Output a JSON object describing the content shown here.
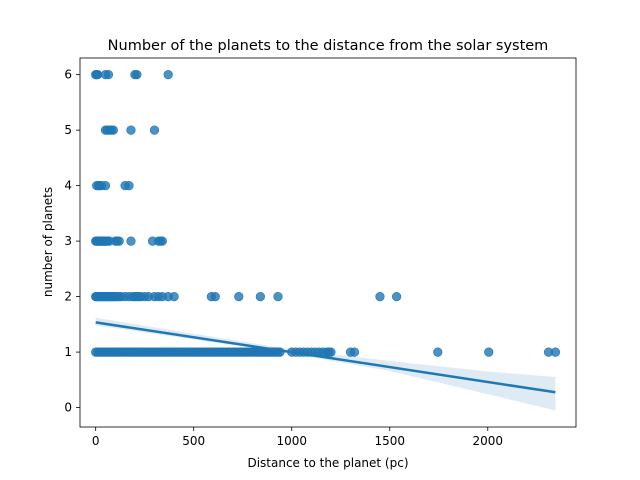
{
  "chart_data": {
    "type": "scatter",
    "title": "Number of the planets to the distance from the solar system",
    "xlabel": "Distance to the planet (pc)",
    "ylabel": "number of planets",
    "xlim": [
      -80,
      2450
    ],
    "ylim": [
      -0.35,
      6.3
    ],
    "xticks": [
      0,
      500,
      1000,
      1500,
      2000
    ],
    "yticks": [
      0,
      1,
      2,
      3,
      4,
      5,
      6
    ],
    "grid": false,
    "point_color": "#1f77b4",
    "band_color": "#1f77b4",
    "series": [
      {
        "type": "scatter",
        "points": [
          [
            0,
            6
          ],
          [
            5,
            6
          ],
          [
            10,
            6
          ],
          [
            50,
            6
          ],
          [
            65,
            6
          ],
          [
            200,
            6
          ],
          [
            210,
            6
          ],
          [
            370,
            6
          ],
          [
            50,
            5
          ],
          [
            60,
            5
          ],
          [
            70,
            5
          ],
          [
            80,
            5
          ],
          [
            90,
            5
          ],
          [
            180,
            5
          ],
          [
            300,
            5
          ],
          [
            5,
            4
          ],
          [
            15,
            4
          ],
          [
            20,
            4
          ],
          [
            30,
            4
          ],
          [
            50,
            4
          ],
          [
            150,
            4
          ],
          [
            170,
            4
          ],
          [
            0,
            3
          ],
          [
            5,
            3
          ],
          [
            10,
            3
          ],
          [
            15,
            3
          ],
          [
            20,
            3
          ],
          [
            25,
            3
          ],
          [
            30,
            3
          ],
          [
            35,
            3
          ],
          [
            40,
            3
          ],
          [
            45,
            3
          ],
          [
            50,
            3
          ],
          [
            55,
            3
          ],
          [
            60,
            3
          ],
          [
            70,
            3
          ],
          [
            100,
            3
          ],
          [
            110,
            3
          ],
          [
            120,
            3
          ],
          [
            180,
            3
          ],
          [
            290,
            3
          ],
          [
            320,
            3
          ],
          [
            330,
            3
          ],
          [
            340,
            3
          ],
          [
            0,
            2
          ],
          [
            5,
            2
          ],
          [
            10,
            2
          ],
          [
            15,
            2
          ],
          [
            20,
            2
          ],
          [
            25,
            2
          ],
          [
            30,
            2
          ],
          [
            35,
            2
          ],
          [
            40,
            2
          ],
          [
            45,
            2
          ],
          [
            50,
            2
          ],
          [
            55,
            2
          ],
          [
            60,
            2
          ],
          [
            65,
            2
          ],
          [
            70,
            2
          ],
          [
            75,
            2
          ],
          [
            80,
            2
          ],
          [
            85,
            2
          ],
          [
            90,
            2
          ],
          [
            95,
            2
          ],
          [
            100,
            2
          ],
          [
            110,
            2
          ],
          [
            120,
            2
          ],
          [
            130,
            2
          ],
          [
            150,
            2
          ],
          [
            170,
            2
          ],
          [
            190,
            2
          ],
          [
            200,
            2
          ],
          [
            210,
            2
          ],
          [
            220,
            2
          ],
          [
            230,
            2
          ],
          [
            250,
            2
          ],
          [
            270,
            2
          ],
          [
            300,
            2
          ],
          [
            320,
            2
          ],
          [
            340,
            2
          ],
          [
            370,
            2
          ],
          [
            400,
            2
          ],
          [
            590,
            2
          ],
          [
            610,
            2
          ],
          [
            730,
            2
          ],
          [
            840,
            2
          ],
          [
            930,
            2
          ],
          [
            1450,
            2
          ],
          [
            1535,
            2
          ],
          [
            0,
            1
          ],
          [
            10,
            1
          ],
          [
            20,
            1
          ],
          [
            30,
            1
          ],
          [
            40,
            1
          ],
          [
            50,
            1
          ],
          [
            60,
            1
          ],
          [
            70,
            1
          ],
          [
            80,
            1
          ],
          [
            90,
            1
          ],
          [
            100,
            1
          ],
          [
            110,
            1
          ],
          [
            120,
            1
          ],
          [
            130,
            1
          ],
          [
            140,
            1
          ],
          [
            150,
            1
          ],
          [
            160,
            1
          ],
          [
            170,
            1
          ],
          [
            180,
            1
          ],
          [
            190,
            1
          ],
          [
            200,
            1
          ],
          [
            210,
            1
          ],
          [
            220,
            1
          ],
          [
            230,
            1
          ],
          [
            240,
            1
          ],
          [
            250,
            1
          ],
          [
            260,
            1
          ],
          [
            270,
            1
          ],
          [
            280,
            1
          ],
          [
            290,
            1
          ],
          [
            300,
            1
          ],
          [
            310,
            1
          ],
          [
            320,
            1
          ],
          [
            330,
            1
          ],
          [
            340,
            1
          ],
          [
            350,
            1
          ],
          [
            360,
            1
          ],
          [
            370,
            1
          ],
          [
            380,
            1
          ],
          [
            390,
            1
          ],
          [
            400,
            1
          ],
          [
            410,
            1
          ],
          [
            420,
            1
          ],
          [
            430,
            1
          ],
          [
            440,
            1
          ],
          [
            450,
            1
          ],
          [
            460,
            1
          ],
          [
            470,
            1
          ],
          [
            480,
            1
          ],
          [
            490,
            1
          ],
          [
            500,
            1
          ],
          [
            510,
            1
          ],
          [
            520,
            1
          ],
          [
            530,
            1
          ],
          [
            540,
            1
          ],
          [
            550,
            1
          ],
          [
            560,
            1
          ],
          [
            570,
            1
          ],
          [
            580,
            1
          ],
          [
            590,
            1
          ],
          [
            600,
            1
          ],
          [
            610,
            1
          ],
          [
            620,
            1
          ],
          [
            630,
            1
          ],
          [
            640,
            1
          ],
          [
            650,
            1
          ],
          [
            660,
            1
          ],
          [
            670,
            1
          ],
          [
            680,
            1
          ],
          [
            690,
            1
          ],
          [
            700,
            1
          ],
          [
            710,
            1
          ],
          [
            720,
            1
          ],
          [
            730,
            1
          ],
          [
            740,
            1
          ],
          [
            750,
            1
          ],
          [
            760,
            1
          ],
          [
            770,
            1
          ],
          [
            780,
            1
          ],
          [
            790,
            1
          ],
          [
            800,
            1
          ],
          [
            810,
            1
          ],
          [
            820,
            1
          ],
          [
            830,
            1
          ],
          [
            840,
            1
          ],
          [
            850,
            1
          ],
          [
            860,
            1
          ],
          [
            870,
            1
          ],
          [
            880,
            1
          ],
          [
            890,
            1
          ],
          [
            900,
            1
          ],
          [
            910,
            1
          ],
          [
            920,
            1
          ],
          [
            930,
            1
          ],
          [
            940,
            1
          ],
          [
            1000,
            1
          ],
          [
            1020,
            1
          ],
          [
            1040,
            1
          ],
          [
            1060,
            1
          ],
          [
            1080,
            1
          ],
          [
            1100,
            1
          ],
          [
            1120,
            1
          ],
          [
            1140,
            1
          ],
          [
            1160,
            1
          ],
          [
            1180,
            1
          ],
          [
            1190,
            1
          ],
          [
            1200,
            1
          ],
          [
            1300,
            1
          ],
          [
            1320,
            1
          ],
          [
            1745,
            1
          ],
          [
            2005,
            1
          ],
          [
            2310,
            1
          ],
          [
            2345,
            1
          ]
        ]
      },
      {
        "type": "line",
        "regression": {
          "intercept": 1.535,
          "slope": -0.000537,
          "x_start": 0,
          "x_end": 2345
        },
        "confidence_band": {
          "x": [
            0,
            500,
            1000,
            1500,
            2000,
            2345
          ],
          "lower": [
            1.48,
            1.23,
            0.97,
            0.66,
            0.24,
            -0.05
          ],
          "upper": [
            1.62,
            1.33,
            1.05,
            0.84,
            0.65,
            0.55
          ]
        }
      }
    ]
  }
}
